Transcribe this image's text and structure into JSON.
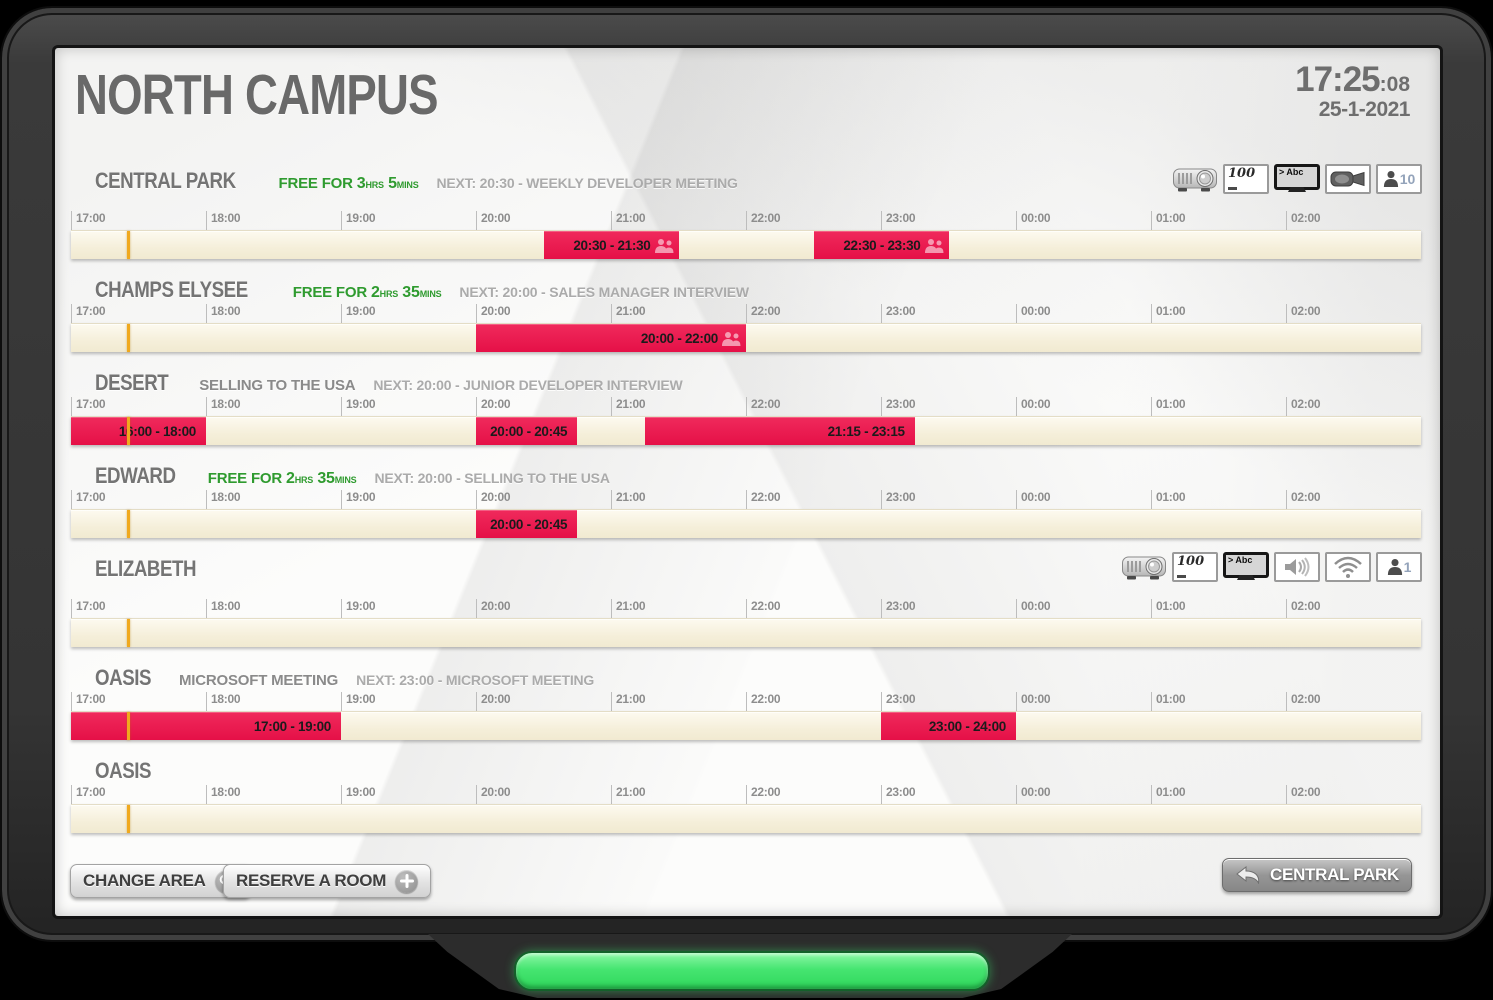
{
  "header": {
    "title": "NORTH CAMPUS",
    "time": "17:25",
    "seconds": ":08",
    "date": "25-1-2021"
  },
  "timeline": {
    "ticks": [
      "17:00",
      "18:00",
      "19:00",
      "20:00",
      "21:00",
      "22:00",
      "23:00",
      "00:00",
      "01:00",
      "02:00"
    ],
    "start": "17:00",
    "span_hours": 10,
    "current_time": "17:25"
  },
  "rooms": [
    {
      "name": "CENTRAL PARK",
      "free": {
        "prefix": "FREE FOR",
        "parts": [
          {
            "num": "3",
            "unit": "HRS"
          },
          {
            "num": "5",
            "unit": "MINS"
          }
        ]
      },
      "current_meeting": null,
      "next": "NEXT: 20:30 - WEEKLY DEVELOPER MEETING",
      "facilities": [
        {
          "type": "projector"
        },
        {
          "type": "whiteboard",
          "label": "100"
        },
        {
          "type": "tv",
          "label": "> Abc"
        },
        {
          "type": "camera"
        },
        {
          "type": "capacity",
          "label": "10"
        }
      ],
      "bookings": [
        {
          "label": "20:30 - 21:30",
          "attendees_icon": true
        },
        {
          "label": "22:30 - 23:30",
          "attendees_icon": true
        }
      ]
    },
    {
      "name": "CHAMPS ELYSEE",
      "free": {
        "prefix": "FREE FOR",
        "parts": [
          {
            "num": "2",
            "unit": "HRS"
          },
          {
            "num": "35",
            "unit": "MINS"
          }
        ]
      },
      "current_meeting": null,
      "next": "NEXT: 20:00 - SALES MANAGER INTERVIEW",
      "facilities": [],
      "bookings": [
        {
          "label": "20:00 - 22:00",
          "attendees_icon": true
        }
      ]
    },
    {
      "name": "DESERT",
      "free": null,
      "current_meeting": "SELLING TO THE USA",
      "next": "NEXT: 20:00 - JUNIOR DEVELOPER INTERVIEW",
      "facilities": [],
      "bookings": [
        {
          "label": "16:00 - 18:00",
          "attendees_icon": false
        },
        {
          "label": "20:00 - 20:45",
          "attendees_icon": false
        },
        {
          "label": "21:15 - 23:15",
          "attendees_icon": false
        }
      ]
    },
    {
      "name": "EDWARD",
      "free": {
        "prefix": "FREE FOR",
        "parts": [
          {
            "num": "2",
            "unit": "HRS"
          },
          {
            "num": "35",
            "unit": "MINS"
          }
        ]
      },
      "current_meeting": null,
      "next": "NEXT: 20:00 - SELLING TO THE USA",
      "facilities": [],
      "bookings": [
        {
          "label": "20:00 - 20:45",
          "attendees_icon": false
        }
      ]
    },
    {
      "name": "ELIZABETH",
      "free": null,
      "current_meeting": null,
      "next": null,
      "facilities": [
        {
          "type": "projector"
        },
        {
          "type": "whiteboard",
          "label": "100"
        },
        {
          "type": "tv",
          "label": "> Abc"
        },
        {
          "type": "speaker"
        },
        {
          "type": "wifi"
        },
        {
          "type": "capacity",
          "label": "1"
        }
      ],
      "bookings": []
    },
    {
      "name": "OASIS",
      "free": null,
      "current_meeting": "MICROSOFT MEETING",
      "next": "NEXT: 23:00 - MICROSOFT MEETING",
      "facilities": [],
      "bookings": [
        {
          "label": "17:00 - 19:00",
          "attendees_icon": false
        },
        {
          "label": "23:00 - 24:00",
          "attendees_icon": false
        }
      ]
    },
    {
      "name": "OASIS",
      "free": null,
      "current_meeting": null,
      "next": null,
      "facilities": [],
      "bookings": []
    }
  ],
  "footer": {
    "change_area_label": "CHANGE AREA",
    "reserve_room_label": "RESERVE A ROOM",
    "room_nav_label": "CENTRAL PARK"
  },
  "colors": {
    "booking_red": "#e8164c",
    "free_green": "#2f9b2f",
    "timeline_cream": "#f8f3e0",
    "current_line_orange": "#f0a91e",
    "led_green": "#46e571"
  }
}
